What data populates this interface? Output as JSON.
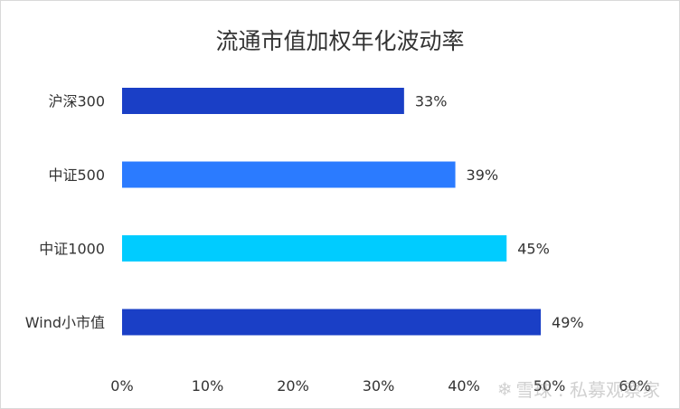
{
  "chart_data": {
    "type": "bar",
    "orientation": "horizontal",
    "title": "流通市值加权年化波动率",
    "categories": [
      "沪深300",
      "中证500",
      "中证1000",
      "Wind小市值"
    ],
    "values": [
      33,
      39,
      45,
      49
    ],
    "data_labels": [
      "33%",
      "39%",
      "45%",
      "49%"
    ],
    "bar_colors": [
      "#1a3fc6",
      "#2b7bff",
      "#00ccff",
      "#1a3fc6"
    ],
    "xlim": [
      0,
      60
    ],
    "xticks": [
      0,
      10,
      20,
      30,
      40,
      50,
      60
    ],
    "xtick_labels": [
      "0%",
      "10%",
      "20%",
      "30%",
      "40%",
      "50%",
      "60%"
    ],
    "grid": false,
    "legend": "none"
  },
  "watermark": {
    "text": "雪球 : 私募观察家",
    "icon": "snowball-icon"
  }
}
